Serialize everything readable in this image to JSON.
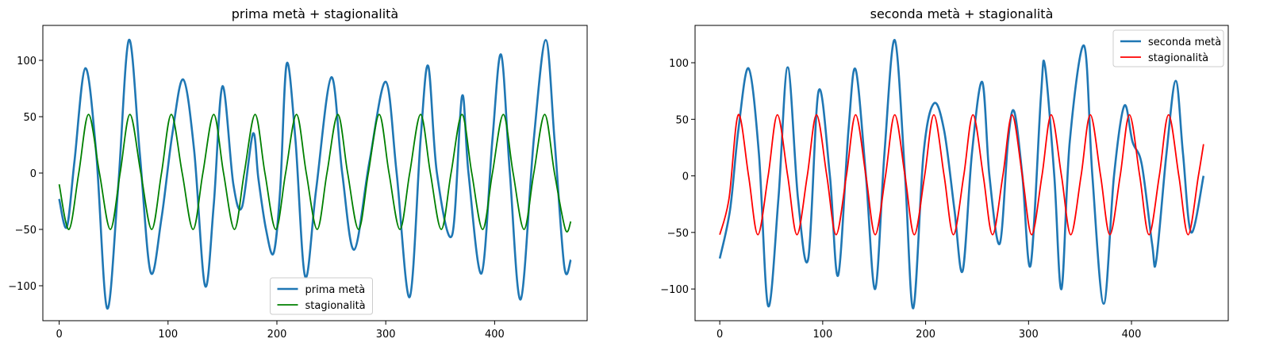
{
  "chart_data": [
    {
      "type": "line",
      "title": "prima metà + stagionalità",
      "xlabel": "",
      "ylabel": "",
      "xlim": [
        -15,
        485
      ],
      "ylim": [
        -131,
        131
      ],
      "xticks": [
        0,
        100,
        200,
        300,
        400
      ],
      "yticks": [
        -100,
        -50,
        0,
        50,
        100
      ],
      "grid": false,
      "legend": "lower-center",
      "series": [
        {
          "name": "prima metà",
          "color": "#1f77b4",
          "points": [
            [
              0,
              -23
            ],
            [
              7,
              -48
            ],
            [
              14,
              10
            ],
            [
              24,
              93
            ],
            [
              34,
              18
            ],
            [
              44,
              -120
            ],
            [
              54,
              -15
            ],
            [
              64,
              118
            ],
            [
              74,
              18
            ],
            [
              84,
              -88
            ],
            [
              94,
              -40
            ],
            [
              104,
              35
            ],
            [
              114,
              83
            ],
            [
              124,
              20
            ],
            [
              134,
              -100
            ],
            [
              142,
              -28
            ],
            [
              150,
              77
            ],
            [
              160,
              -10
            ],
            [
              168,
              -30
            ],
            [
              178,
              35
            ],
            [
              183,
              -5
            ],
            [
              190,
              -50
            ],
            [
              197,
              -71
            ],
            [
              203,
              -15
            ],
            [
              209,
              97
            ],
            [
              217,
              30
            ],
            [
              226,
              -92
            ],
            [
              236,
              -15
            ],
            [
              250,
              85
            ],
            [
              260,
              0
            ],
            [
              271,
              -68
            ],
            [
              285,
              10
            ],
            [
              300,
              81
            ],
            [
              310,
              0
            ],
            [
              322,
              -110
            ],
            [
              332,
              30
            ],
            [
              339,
              95
            ],
            [
              347,
              0
            ],
            [
              361,
              -55
            ],
            [
              370,
              68
            ],
            [
              376,
              0
            ],
            [
              388,
              -89
            ],
            [
              398,
              30
            ],
            [
              406,
              105
            ],
            [
              414,
              0
            ],
            [
              424,
              -112
            ],
            [
              436,
              30
            ],
            [
              447,
              118
            ],
            [
              455,
              30
            ],
            [
              464,
              -83
            ],
            [
              470,
              -77
            ]
          ]
        },
        {
          "name": "stagionalità",
          "color": "#008000",
          "points": [
            [
              0,
              -10
            ],
            [
              9,
              -50
            ],
            [
              18,
              0
            ],
            [
              27,
              52
            ],
            [
              37,
              0
            ],
            [
              47,
              -50
            ],
            [
              56,
              0
            ],
            [
              65,
              52
            ],
            [
              75,
              0
            ],
            [
              85,
              -50
            ],
            [
              94,
              0
            ],
            [
              103,
              52
            ],
            [
              113,
              0
            ],
            [
              123,
              -50
            ],
            [
              132,
              0
            ],
            [
              142,
              52
            ],
            [
              151,
              0
            ],
            [
              161,
              -50
            ],
            [
              170,
              0
            ],
            [
              180,
              52
            ],
            [
              189,
              0
            ],
            [
              199,
              -50
            ],
            [
              208,
              0
            ],
            [
              218,
              52
            ],
            [
              227,
              0
            ],
            [
              237,
              -50
            ],
            [
              246,
              0
            ],
            [
              256,
              52
            ],
            [
              265,
              0
            ],
            [
              275,
              -50
            ],
            [
              284,
              0
            ],
            [
              294,
              52
            ],
            [
              303,
              0
            ],
            [
              313,
              -50
            ],
            [
              322,
              0
            ],
            [
              332,
              52
            ],
            [
              341,
              0
            ],
            [
              351,
              -50
            ],
            [
              360,
              0
            ],
            [
              370,
              52
            ],
            [
              379,
              0
            ],
            [
              389,
              -50
            ],
            [
              398,
              0
            ],
            [
              408,
              52
            ],
            [
              417,
              0
            ],
            [
              427,
              -50
            ],
            [
              436,
              0
            ],
            [
              446,
              52
            ],
            [
              455,
              0
            ],
            [
              465,
              -50
            ],
            [
              470,
              -43
            ]
          ]
        }
      ]
    },
    {
      "type": "line",
      "title": "seconda metà + stagionalità",
      "xlabel": "",
      "ylabel": "",
      "xlim": [
        -24,
        494
      ],
      "ylim": [
        -128,
        133
      ],
      "xticks": [
        0,
        100,
        200,
        300,
        400
      ],
      "yticks": [
        -100,
        -50,
        0,
        50,
        100
      ],
      "grid": false,
      "legend": "upper-right",
      "series": [
        {
          "name": "seconda metà",
          "color": "#1f77b4",
          "points": [
            [
              0,
              -73
            ],
            [
              10,
              -30
            ],
            [
              18,
              40
            ],
            [
              28,
              95
            ],
            [
              38,
              20
            ],
            [
              47,
              -115
            ],
            [
              57,
              -20
            ],
            [
              66,
              96
            ],
            [
              76,
              -20
            ],
            [
              86,
              -73
            ],
            [
              96,
              75
            ],
            [
              107,
              0
            ],
            [
              115,
              -88
            ],
            [
              125,
              40
            ],
            [
              132,
              94
            ],
            [
              142,
              0
            ],
            [
              151,
              -100
            ],
            [
              160,
              20
            ],
            [
              170,
              120
            ],
            [
              180,
              0
            ],
            [
              188,
              -117
            ],
            [
              198,
              20
            ],
            [
              208,
              64
            ],
            [
              218,
              40
            ],
            [
              228,
              -30
            ],
            [
              236,
              -84
            ],
            [
              245,
              20
            ],
            [
              255,
              83
            ],
            [
              262,
              0
            ],
            [
              272,
              -60
            ],
            [
              280,
              30
            ],
            [
              286,
              57
            ],
            [
              294,
              0
            ],
            [
              302,
              -79
            ],
            [
              312,
              70
            ],
            [
              316,
              97
            ],
            [
              325,
              0
            ],
            [
              332,
              -100
            ],
            [
              340,
              30
            ],
            [
              354,
              115
            ],
            [
              362,
              0
            ],
            [
              373,
              -113
            ],
            [
              383,
              0
            ],
            [
              393,
              62
            ],
            [
              401,
              30
            ],
            [
              410,
              10
            ],
            [
              420,
              -60
            ],
            [
              424,
              -75
            ],
            [
              434,
              20
            ],
            [
              443,
              84
            ],
            [
              450,
              20
            ],
            [
              458,
              -50
            ],
            [
              470,
              0
            ]
          ]
        },
        {
          "name": "stagionalità",
          "color": "#ff0000",
          "points": [
            [
              0,
              -52
            ],
            [
              9,
              -20
            ],
            [
              18,
              54
            ],
            [
              28,
              0
            ],
            [
              37,
              -52
            ],
            [
              47,
              0
            ],
            [
              56,
              54
            ],
            [
              66,
              0
            ],
            [
              75,
              -52
            ],
            [
              85,
              0
            ],
            [
              94,
              54
            ],
            [
              104,
              0
            ],
            [
              113,
              -52
            ],
            [
              123,
              0
            ],
            [
              132,
              54
            ],
            [
              142,
              0
            ],
            [
              151,
              -52
            ],
            [
              161,
              0
            ],
            [
              170,
              54
            ],
            [
              180,
              0
            ],
            [
              189,
              -52
            ],
            [
              199,
              0
            ],
            [
              208,
              54
            ],
            [
              218,
              0
            ],
            [
              227,
              -52
            ],
            [
              237,
              0
            ],
            [
              246,
              54
            ],
            [
              256,
              0
            ],
            [
              265,
              -52
            ],
            [
              275,
              0
            ],
            [
              284,
              54
            ],
            [
              294,
              0
            ],
            [
              303,
              -52
            ],
            [
              313,
              0
            ],
            [
              322,
              54
            ],
            [
              332,
              0
            ],
            [
              341,
              -52
            ],
            [
              351,
              0
            ],
            [
              360,
              54
            ],
            [
              370,
              0
            ],
            [
              379,
              -52
            ],
            [
              389,
              0
            ],
            [
              398,
              54
            ],
            [
              408,
              0
            ],
            [
              417,
              -52
            ],
            [
              427,
              0
            ],
            [
              436,
              54
            ],
            [
              446,
              0
            ],
            [
              455,
              -52
            ],
            [
              465,
              0
            ],
            [
              470,
              28
            ]
          ]
        }
      ]
    }
  ]
}
